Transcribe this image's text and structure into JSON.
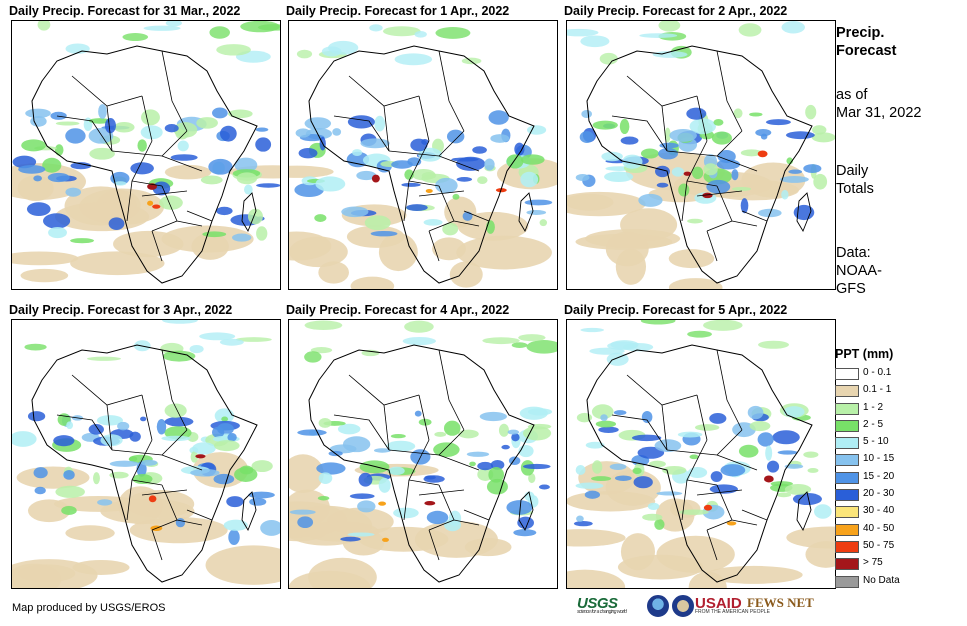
{
  "panels": [
    {
      "title": "Daily Precip. Forecast for 31 Mar., 2022"
    },
    {
      "title": "Daily Precip. Forecast for 1 Apr., 2022"
    },
    {
      "title": "Daily Precip. Forecast for 2 Apr., 2022"
    },
    {
      "title": "Daily Precip. Forecast for 3 Apr., 2022"
    },
    {
      "title": "Daily Precip. Forecast for 4 Apr., 2022"
    },
    {
      "title": "Daily Precip. Forecast for 5 Apr., 2022"
    }
  ],
  "sidebar": {
    "title_line1": "Precip.",
    "title_line2": "Forecast",
    "asof_line1": "as of",
    "asof_line2": "Mar 31, 2022",
    "totals_line1": "Daily",
    "totals_line2": "Totals",
    "source_line1": "Data:",
    "source_line2": "NOAA-",
    "source_line3": "GFS"
  },
  "legend": {
    "title": "PPT (mm)",
    "items": [
      {
        "label": "0 - 0.1",
        "color": "#ffffff"
      },
      {
        "label": "0.1 - 1",
        "color": "#e8d5b0"
      },
      {
        "label": "1 - 2",
        "color": "#b8f0a8"
      },
      {
        "label": "2 - 5",
        "color": "#78e068"
      },
      {
        "label": "5 - 10",
        "color": "#b0eef5"
      },
      {
        "label": "10 - 15",
        "color": "#86c2ee"
      },
      {
        "label": "15 - 20",
        "color": "#4f93e6"
      },
      {
        "label": "20 - 30",
        "color": "#2a5fd8"
      },
      {
        "label": "30 - 40",
        "color": "#fbe57a"
      },
      {
        "label": "40 - 50",
        "color": "#f7a21b"
      },
      {
        "label": "50 - 75",
        "color": "#ee3d12"
      },
      {
        "label": "> 75",
        "color": "#a4161a"
      },
      {
        "label": "No Data",
        "color": "#9a9a9a"
      }
    ]
  },
  "footer": {
    "credit": "Map produced by USGS/EROS",
    "usgs": "USGS",
    "usgs_tagline": "science for a changing world",
    "usaid": "USAID",
    "usaid_tagline": "FROM THE AMERICAN PEOPLE",
    "fews": "FEWS NET"
  }
}
